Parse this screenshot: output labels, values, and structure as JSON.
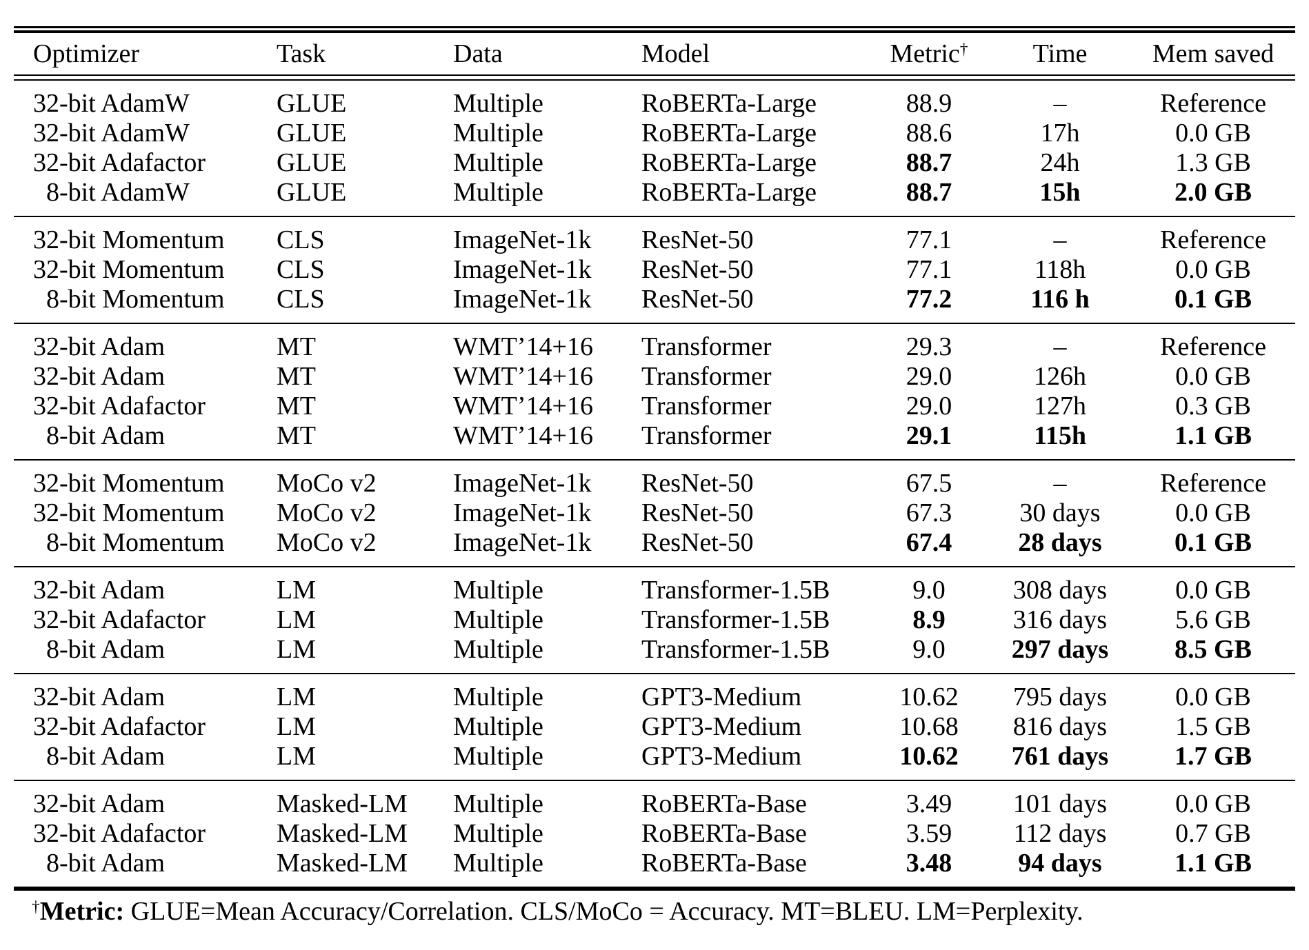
{
  "page": {
    "background": "#ffffff",
    "text_color": "#000000"
  },
  "table": {
    "header": {
      "optimizer": "Optimizer",
      "task": "Task",
      "data": "Data",
      "model": "Model",
      "metric": "Metric",
      "metric_superscript": "†",
      "time": "Time",
      "mem_saved": "Mem saved"
    },
    "groups": [
      {
        "rows": [
          {
            "optimizer": "32-bit AdamW",
            "task": "GLUE",
            "data": "Multiple",
            "model": "RoBERTa-Large",
            "metric": "88.9",
            "time": "–",
            "mem": "Reference",
            "bold": []
          },
          {
            "optimizer": "32-bit AdamW",
            "task": "GLUE",
            "data": "Multiple",
            "model": "RoBERTa-Large",
            "metric": "88.6",
            "time": "17h",
            "mem": "0.0 GB",
            "bold": []
          },
          {
            "optimizer": "32-bit Adafactor",
            "task": "GLUE",
            "data": "Multiple",
            "model": "RoBERTa-Large",
            "metric": "88.7",
            "time": "24h",
            "mem": "1.3 GB",
            "bold": [
              "metric"
            ]
          },
          {
            "optimizer": "  8-bit AdamW",
            "task": "GLUE",
            "data": "Multiple",
            "model": "RoBERTa-Large",
            "metric": "88.7",
            "time": "15h",
            "mem": "2.0 GB",
            "bold": [
              "metric",
              "time",
              "mem"
            ]
          }
        ]
      },
      {
        "rows": [
          {
            "optimizer": "32-bit Momentum",
            "task": "CLS",
            "data": "ImageNet-1k",
            "model": "ResNet-50",
            "metric": "77.1",
            "time": "–",
            "mem": "Reference",
            "bold": []
          },
          {
            "optimizer": "32-bit Momentum",
            "task": "CLS",
            "data": "ImageNet-1k",
            "model": "ResNet-50",
            "metric": "77.1",
            "time": "118h",
            "mem": "0.0 GB",
            "bold": []
          },
          {
            "optimizer": "  8-bit Momentum",
            "task": "CLS",
            "data": "ImageNet-1k",
            "model": "ResNet-50",
            "metric": "77.2",
            "time": "116 h",
            "mem": "0.1 GB",
            "bold": [
              "metric",
              "time",
              "mem"
            ]
          }
        ]
      },
      {
        "rows": [
          {
            "optimizer": "32-bit Adam",
            "task": "MT",
            "data": "WMT’14+16",
            "model": "Transformer",
            "metric": "29.3",
            "time": "–",
            "mem": "Reference",
            "bold": []
          },
          {
            "optimizer": "32-bit Adam",
            "task": "MT",
            "data": "WMT’14+16",
            "model": "Transformer",
            "metric": "29.0",
            "time": "126h",
            "mem": "0.0 GB",
            "bold": []
          },
          {
            "optimizer": "32-bit Adafactor",
            "task": "MT",
            "data": "WMT’14+16",
            "model": "Transformer",
            "metric": "29.0",
            "time": "127h",
            "mem": "0.3 GB",
            "bold": []
          },
          {
            "optimizer": "  8-bit Adam",
            "task": "MT",
            "data": "WMT’14+16",
            "model": "Transformer",
            "metric": "29.1",
            "time": "115h",
            "mem": "1.1 GB",
            "bold": [
              "metric",
              "time",
              "mem"
            ]
          }
        ]
      },
      {
        "rows": [
          {
            "optimizer": "32-bit Momentum",
            "task": "MoCo v2",
            "data": "ImageNet-1k",
            "model": "ResNet-50",
            "metric": "67.5",
            "time": "–",
            "mem": "Reference",
            "bold": []
          },
          {
            "optimizer": "32-bit Momentum",
            "task": "MoCo v2",
            "data": "ImageNet-1k",
            "model": "ResNet-50",
            "metric": "67.3",
            "time": "30 days",
            "mem": "0.0 GB",
            "bold": []
          },
          {
            "optimizer": "  8-bit Momentum",
            "task": "MoCo v2",
            "data": "ImageNet-1k",
            "model": "ResNet-50",
            "metric": "67.4",
            "time": "28 days",
            "mem": "0.1 GB",
            "bold": [
              "metric",
              "time",
              "mem"
            ]
          }
        ]
      },
      {
        "rows": [
          {
            "optimizer": "32-bit Adam",
            "task": "LM",
            "data": "Multiple",
            "model": "Transformer-1.5B",
            "metric": "9.0",
            "time": "308 days",
            "mem": "0.0 GB",
            "bold": []
          },
          {
            "optimizer": "32-bit Adafactor",
            "task": "LM",
            "data": "Multiple",
            "model": "Transformer-1.5B",
            "metric": "8.9",
            "time": "316 days",
            "mem": "5.6 GB",
            "bold": [
              "metric"
            ]
          },
          {
            "optimizer": "  8-bit Adam",
            "task": "LM",
            "data": "Multiple",
            "model": "Transformer-1.5B",
            "metric": "9.0",
            "time": "297 days",
            "mem": "8.5 GB",
            "bold": [
              "time",
              "mem"
            ]
          }
        ]
      },
      {
        "rows": [
          {
            "optimizer": "32-bit Adam",
            "task": "LM",
            "data": "Multiple",
            "model": "GPT3-Medium",
            "metric": "10.62",
            "time": "795 days",
            "mem": "0.0 GB",
            "bold": []
          },
          {
            "optimizer": "32-bit Adafactor",
            "task": "LM",
            "data": "Multiple",
            "model": "GPT3-Medium",
            "metric": "10.68",
            "time": "816 days",
            "mem": "1.5 GB",
            "bold": []
          },
          {
            "optimizer": "  8-bit Adam",
            "task": "LM",
            "data": "Multiple",
            "model": "GPT3-Medium",
            "metric": "10.62",
            "time": "761 days",
            "mem": "1.7 GB",
            "bold": [
              "metric",
              "time",
              "mem"
            ]
          }
        ]
      },
      {
        "rows": [
          {
            "optimizer": "32-bit Adam",
            "task": "Masked-LM",
            "data": "Multiple",
            "model": "RoBERTa-Base",
            "metric": "3.49",
            "time": "101 days",
            "mem": "0.0 GB",
            "bold": []
          },
          {
            "optimizer": "32-bit Adafactor",
            "task": "Masked-LM",
            "data": "Multiple",
            "model": "RoBERTa-Base",
            "metric": "3.59",
            "time": "112 days",
            "mem": "0.7 GB",
            "bold": []
          },
          {
            "optimizer": "  8-bit Adam",
            "task": "Masked-LM",
            "data": "Multiple",
            "model": "RoBERTa-Base",
            "metric": "3.48",
            "time": "94 days",
            "mem": "1.1 GB",
            "bold": [
              "metric",
              "time",
              "mem"
            ]
          }
        ]
      }
    ],
    "footnote": {
      "dagger": "†",
      "label": "Metric:",
      "text": " GLUE=Mean Accuracy/Correlation. CLS/MoCo = Accuracy. MT=BLEU. LM=Perplexity."
    }
  }
}
